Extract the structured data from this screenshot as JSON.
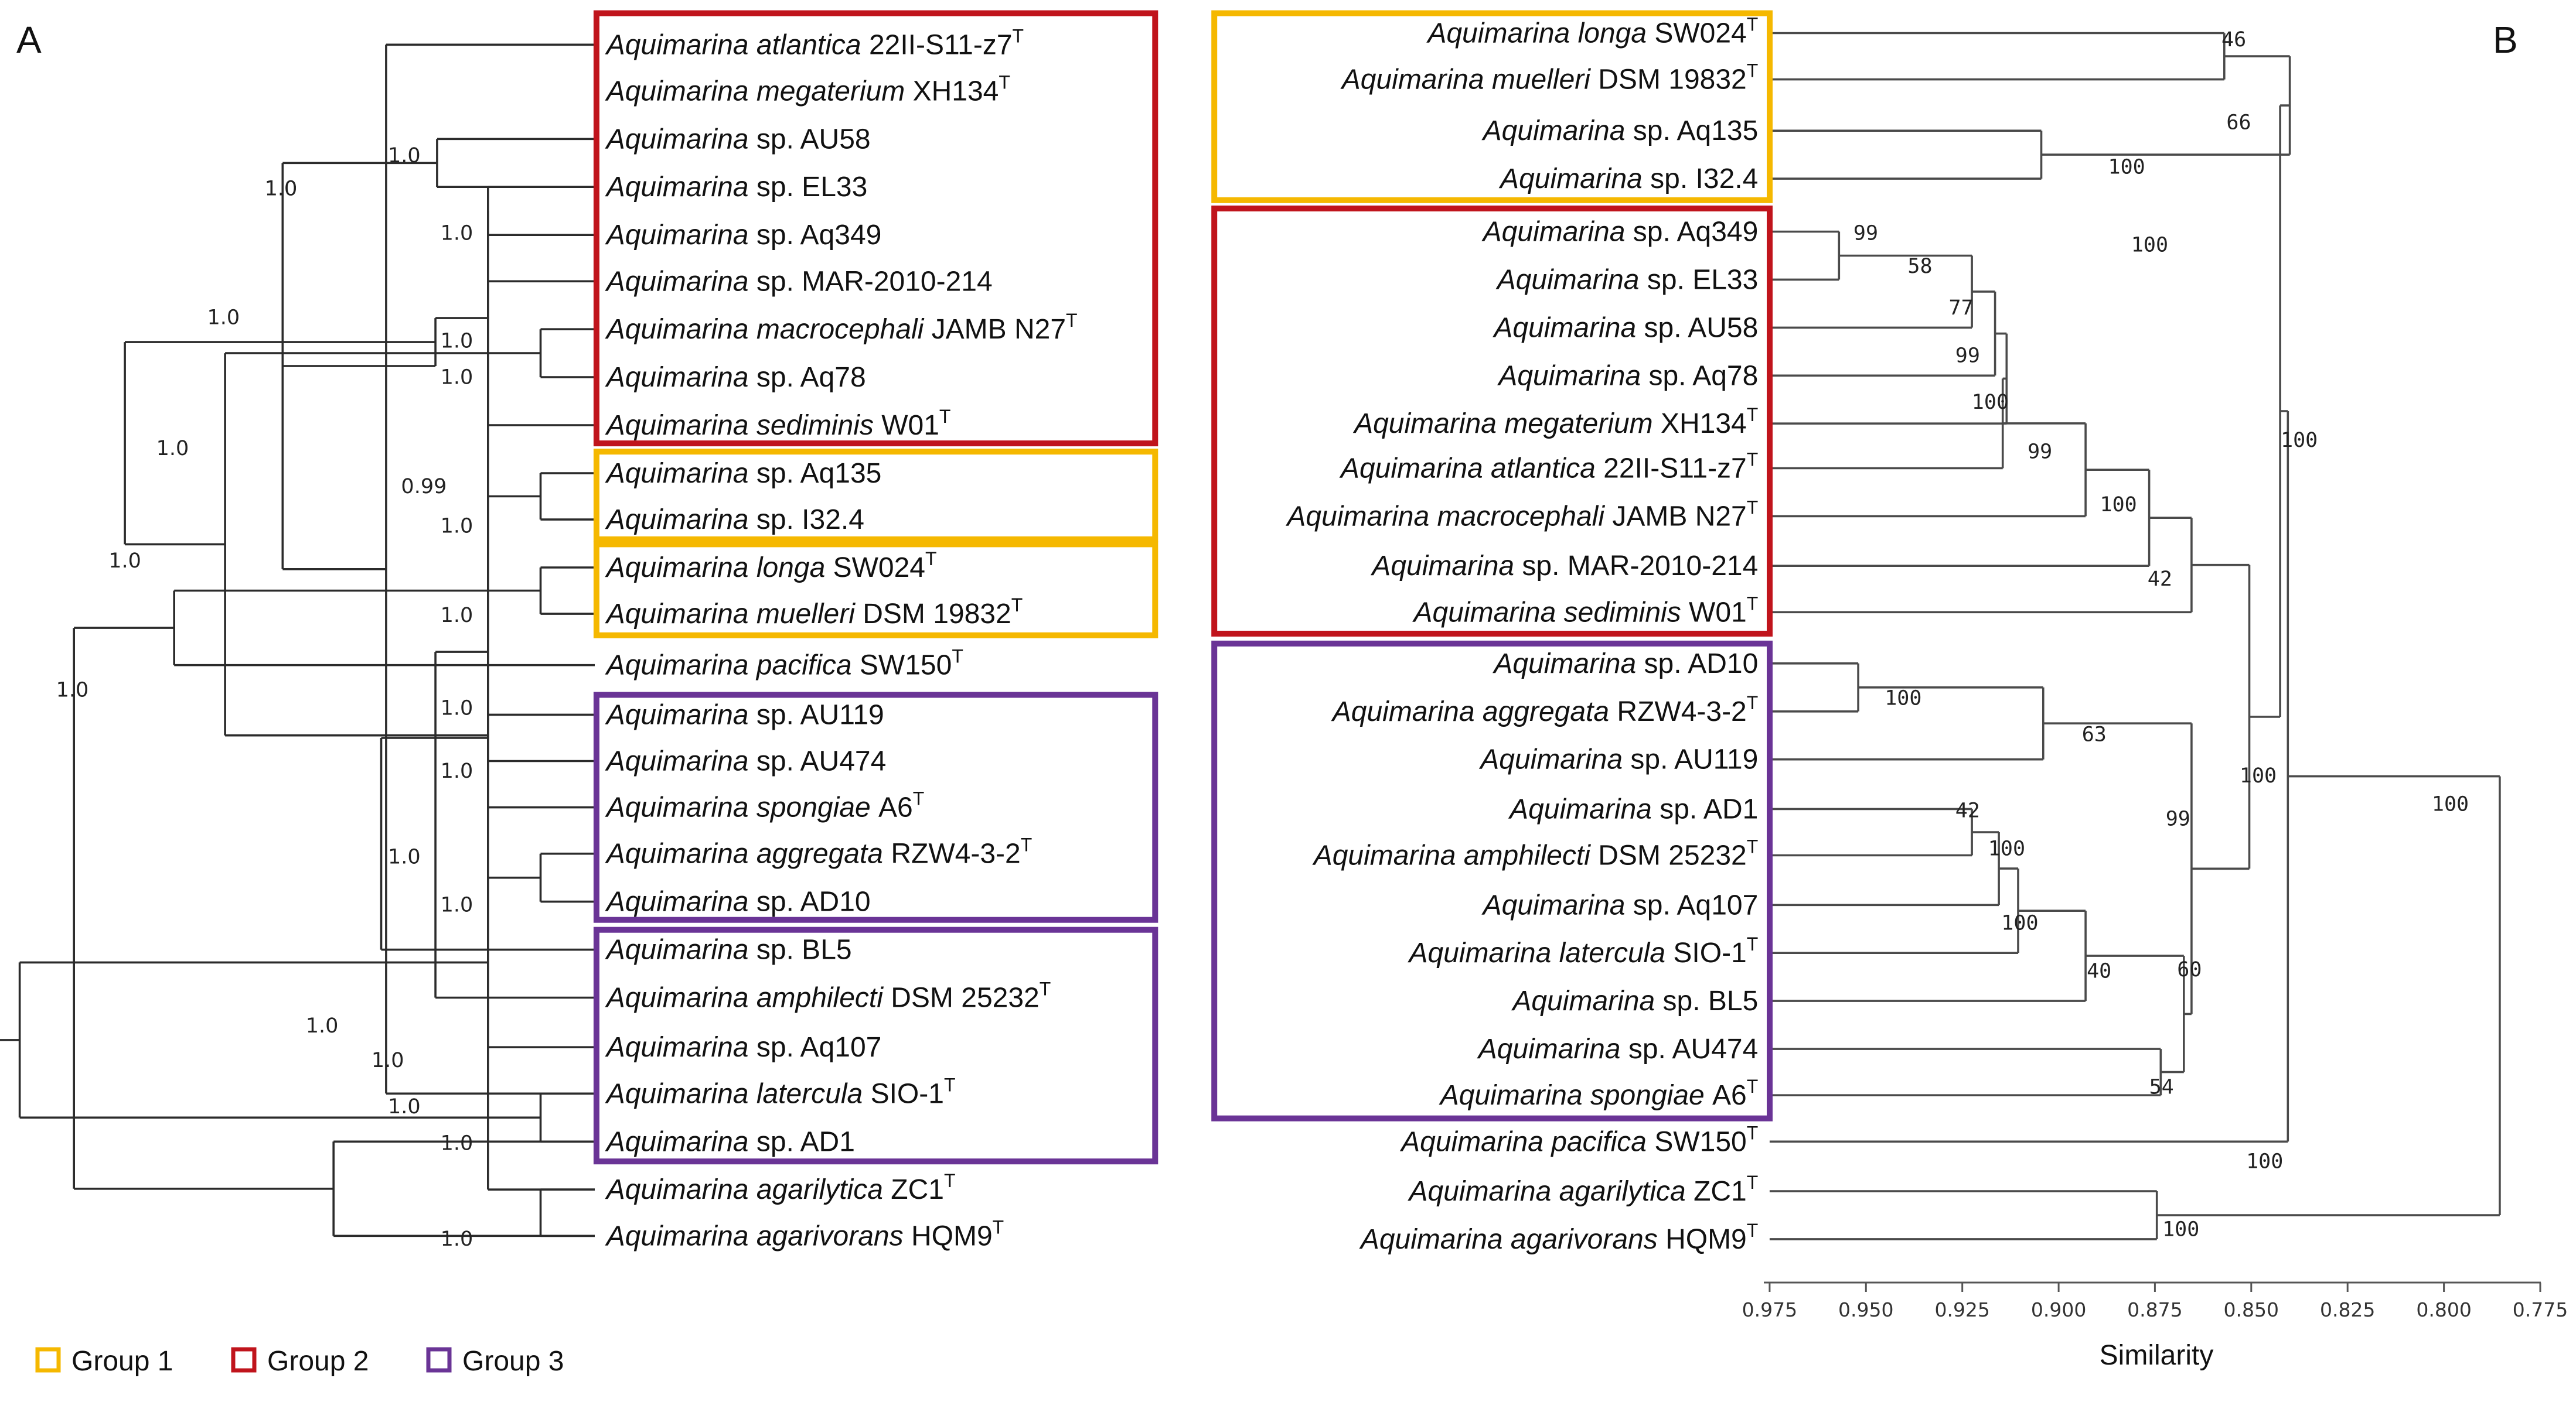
{
  "panel_a": {
    "label": "A",
    "taxa": [
      {
        "genus": "Aquimarina",
        "rest": "atlantica 22II-S11-z7",
        "type": true
      },
      {
        "genus": "Aquimarina",
        "rest": "megaterium XH134",
        "type": true
      },
      {
        "genus": "Aquimarina",
        "rest": "sp. AU58",
        "type": false
      },
      {
        "genus": "Aquimarina",
        "rest": "sp. EL33",
        "type": false
      },
      {
        "genus": "Aquimarina",
        "rest": "sp. Aq349",
        "type": false
      },
      {
        "genus": "Aquimarina",
        "rest": "sp. MAR-2010-214",
        "type": false
      },
      {
        "genus": "Aquimarina",
        "rest": "macrocephali JAMB N27",
        "type": true
      },
      {
        "genus": "Aquimarina",
        "rest": "sp. Aq78",
        "type": false
      },
      {
        "genus": "Aquimarina",
        "rest": "sediminis W01",
        "type": true
      },
      {
        "genus": "Aquimarina",
        "rest": "sp. Aq135",
        "type": false
      },
      {
        "genus": "Aquimarina",
        "rest": "sp. I32.4",
        "type": false
      },
      {
        "genus": "Aquimarina",
        "rest": "longa SW024",
        "type": true
      },
      {
        "genus": "Aquimarina",
        "rest": "muelleri DSM 19832",
        "type": true
      },
      {
        "genus": "Aquimarina",
        "rest": "pacifica SW150",
        "type": true
      },
      {
        "genus": "Aquimarina",
        "rest": "sp. AU119",
        "type": false
      },
      {
        "genus": "Aquimarina",
        "rest": "sp. AU474",
        "type": false
      },
      {
        "genus": "Aquimarina",
        "rest": "spongiae A6",
        "type": true
      },
      {
        "genus": "Aquimarina",
        "rest": "aggregata RZW4-3-2",
        "type": true
      },
      {
        "genus": "Aquimarina",
        "rest": "sp. AD10",
        "type": false
      },
      {
        "genus": "Aquimarina",
        "rest": "sp. BL5",
        "type": false
      },
      {
        "genus": "Aquimarina",
        "rest": "amphilecti DSM 25232",
        "type": true
      },
      {
        "genus": "Aquimarina",
        "rest": "sp. Aq107",
        "type": false
      },
      {
        "genus": "Aquimarina",
        "rest": "latercula SIO-1",
        "type": true
      },
      {
        "genus": "Aquimarina",
        "rest": "sp. AD1",
        "type": false
      },
      {
        "genus": "Aquimarina",
        "rest": "agarilytica ZC1",
        "type": true
      },
      {
        "genus": "Aquimarina",
        "rest": "agarivorans HQM9",
        "type": true
      }
    ],
    "support_values": [
      "1.0",
      "1.0",
      "1.0",
      "1.0",
      "1.0",
      "1.0",
      "1.0",
      "0.99",
      "1.0",
      "1.0",
      "1.0",
      "1.0",
      "1.0",
      "1.0",
      "1.0",
      "1.0",
      "1.0",
      "1.0",
      "1.0",
      "1.0",
      "1.0",
      "1.0"
    ],
    "groups": [
      {
        "name": "Group 2",
        "color": "#c0141c",
        "from": 0,
        "to": 8
      },
      {
        "name": "Group 1",
        "color": "#f5b800",
        "from": 9,
        "to": 10
      },
      {
        "name": "Group 1",
        "color": "#f5b800",
        "from": 11,
        "to": 12
      },
      {
        "name": "Group 3",
        "color": "#6a3496",
        "from": 14,
        "to": 18
      },
      {
        "name": "Group 3",
        "color": "#6a3496",
        "from": 19,
        "to": 23
      }
    ]
  },
  "panel_b": {
    "label": "B",
    "taxa": [
      {
        "genus": "Aquimarina",
        "rest": "longa SW024",
        "type": true
      },
      {
        "genus": "Aquimarina",
        "rest": "muelleri DSM 19832",
        "type": true
      },
      {
        "genus": "Aquimarina",
        "rest": "sp. Aq135",
        "type": false
      },
      {
        "genus": "Aquimarina",
        "rest": "sp. I32.4",
        "type": false
      },
      {
        "genus": "Aquimarina",
        "rest": "sp. Aq349",
        "type": false
      },
      {
        "genus": "Aquimarina",
        "rest": "sp. EL33",
        "type": false
      },
      {
        "genus": "Aquimarina",
        "rest": "sp. AU58",
        "type": false
      },
      {
        "genus": "Aquimarina",
        "rest": "sp. Aq78",
        "type": false
      },
      {
        "genus": "Aquimarina",
        "rest": "megaterium XH134",
        "type": true
      },
      {
        "genus": "Aquimarina",
        "rest": "atlantica 22II-S11-z7",
        "type": true
      },
      {
        "genus": "Aquimarina",
        "rest": "macrocephali JAMB N27",
        "type": true
      },
      {
        "genus": "Aquimarina",
        "rest": "sp. MAR-2010-214",
        "type": false
      },
      {
        "genus": "Aquimarina",
        "rest": "sediminis W01",
        "type": true
      },
      {
        "genus": "Aquimarina",
        "rest": "sp. AD10",
        "type": false
      },
      {
        "genus": "Aquimarina",
        "rest": "aggregata RZW4-3-2",
        "type": true
      },
      {
        "genus": "Aquimarina",
        "rest": "sp. AU119",
        "type": false
      },
      {
        "genus": "Aquimarina",
        "rest": "sp. AD1",
        "type": false
      },
      {
        "genus": "Aquimarina",
        "rest": "amphilecti DSM 25232",
        "type": true
      },
      {
        "genus": "Aquimarina",
        "rest": "sp. Aq107",
        "type": false
      },
      {
        "genus": "Aquimarina",
        "rest": "latercula SIO-1",
        "type": true
      },
      {
        "genus": "Aquimarina",
        "rest": "sp. BL5",
        "type": false
      },
      {
        "genus": "Aquimarina",
        "rest": "sp. AU474",
        "type": false
      },
      {
        "genus": "Aquimarina",
        "rest": "spongiae A6",
        "type": true
      },
      {
        "genus": "Aquimarina",
        "rest": "pacifica SW150",
        "type": true
      },
      {
        "genus": "Aquimarina",
        "rest": "agarilytica ZC1",
        "type": true
      },
      {
        "genus": "Aquimarina",
        "rest": "agarivorans HQM9",
        "type": true
      }
    ],
    "bootstrap_values": [
      "46",
      "66",
      "100",
      "100",
      "99",
      "58",
      "77",
      "99",
      "100",
      "99",
      "100",
      "42",
      "100",
      "100",
      "63",
      "42",
      "100",
      "100",
      "40",
      "99",
      "60",
      "54",
      "100",
      "100",
      "100",
      "100"
    ],
    "axis": {
      "title": "Similarity",
      "ticks": [
        "0.975",
        "0.950",
        "0.925",
        "0.900",
        "0.875",
        "0.850",
        "0.825",
        "0.800",
        "0.775"
      ]
    },
    "groups": [
      {
        "name": "Group 1",
        "color": "#f5b800",
        "from": 0,
        "to": 3
      },
      {
        "name": "Group 2",
        "color": "#c0141c",
        "from": 4,
        "to": 12
      },
      {
        "name": "Group 3",
        "color": "#6a3496",
        "from": 13,
        "to": 22
      }
    ]
  },
  "legend": [
    {
      "label": "Group 1",
      "color": "#f5b800"
    },
    {
      "label": "Group 2",
      "color": "#c0141c"
    },
    {
      "label": "Group 3",
      "color": "#6a3496"
    }
  ]
}
